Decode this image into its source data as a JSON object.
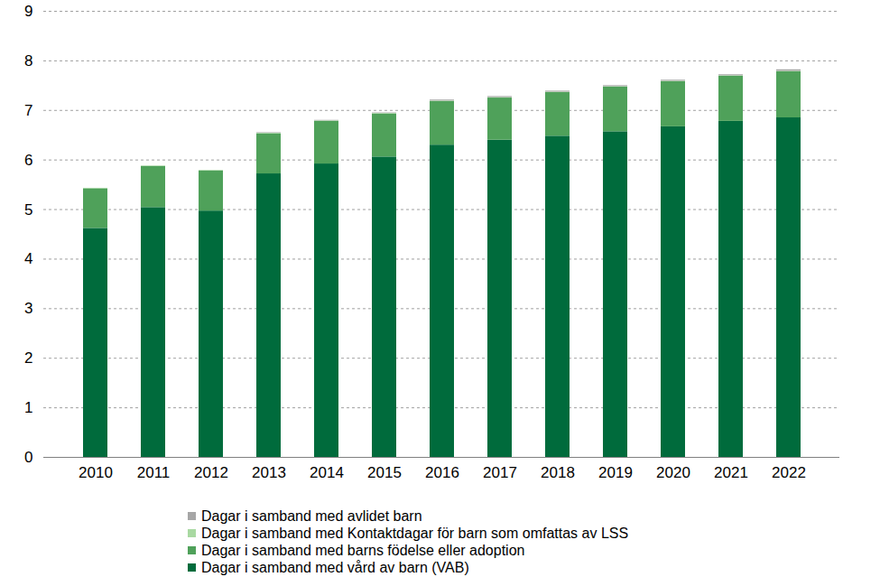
{
  "chart_data": {
    "type": "bar",
    "stacked": true,
    "grid": true,
    "legend": "bottom",
    "categories": [
      "2010",
      "2011",
      "2012",
      "2013",
      "2014",
      "2015",
      "2016",
      "2017",
      "2018",
      "2019",
      "2020",
      "2021",
      "2022"
    ],
    "ylim": [
      0,
      9
    ],
    "yticks": [
      0,
      1,
      2,
      3,
      4,
      5,
      6,
      7,
      8,
      9
    ],
    "series": [
      {
        "name": "Dagar i samband med vård av  barn (VAB)",
        "color": "#006b3c",
        "values": [
          4.62,
          5.04,
          4.97,
          5.72,
          5.92,
          6.06,
          6.3,
          6.4,
          6.48,
          6.57,
          6.67,
          6.78,
          6.85
        ]
      },
      {
        "name": "Dagar i samband med barns födelse eller adoption",
        "color": "#4fa15a",
        "values": [
          0.8,
          0.83,
          0.81,
          0.81,
          0.86,
          0.87,
          0.88,
          0.85,
          0.88,
          0.9,
          0.91,
          0.91,
          0.93
        ]
      },
      {
        "name": "Dagar i samband med Kontaktdagar för barn som omfattas av LSS",
        "color": "#a9d9a2",
        "values": [
          0.01,
          0.01,
          0.01,
          0.01,
          0.01,
          0.01,
          0.01,
          0.01,
          0.01,
          0.01,
          0.01,
          0.01,
          0.01
        ]
      },
      {
        "name": "Dagar i samband med avlidet barn",
        "color": "#a6a6a6",
        "values": [
          0.0,
          0.0,
          0.0,
          0.01,
          0.01,
          0.01,
          0.02,
          0.02,
          0.02,
          0.02,
          0.02,
          0.02,
          0.03
        ]
      }
    ]
  }
}
